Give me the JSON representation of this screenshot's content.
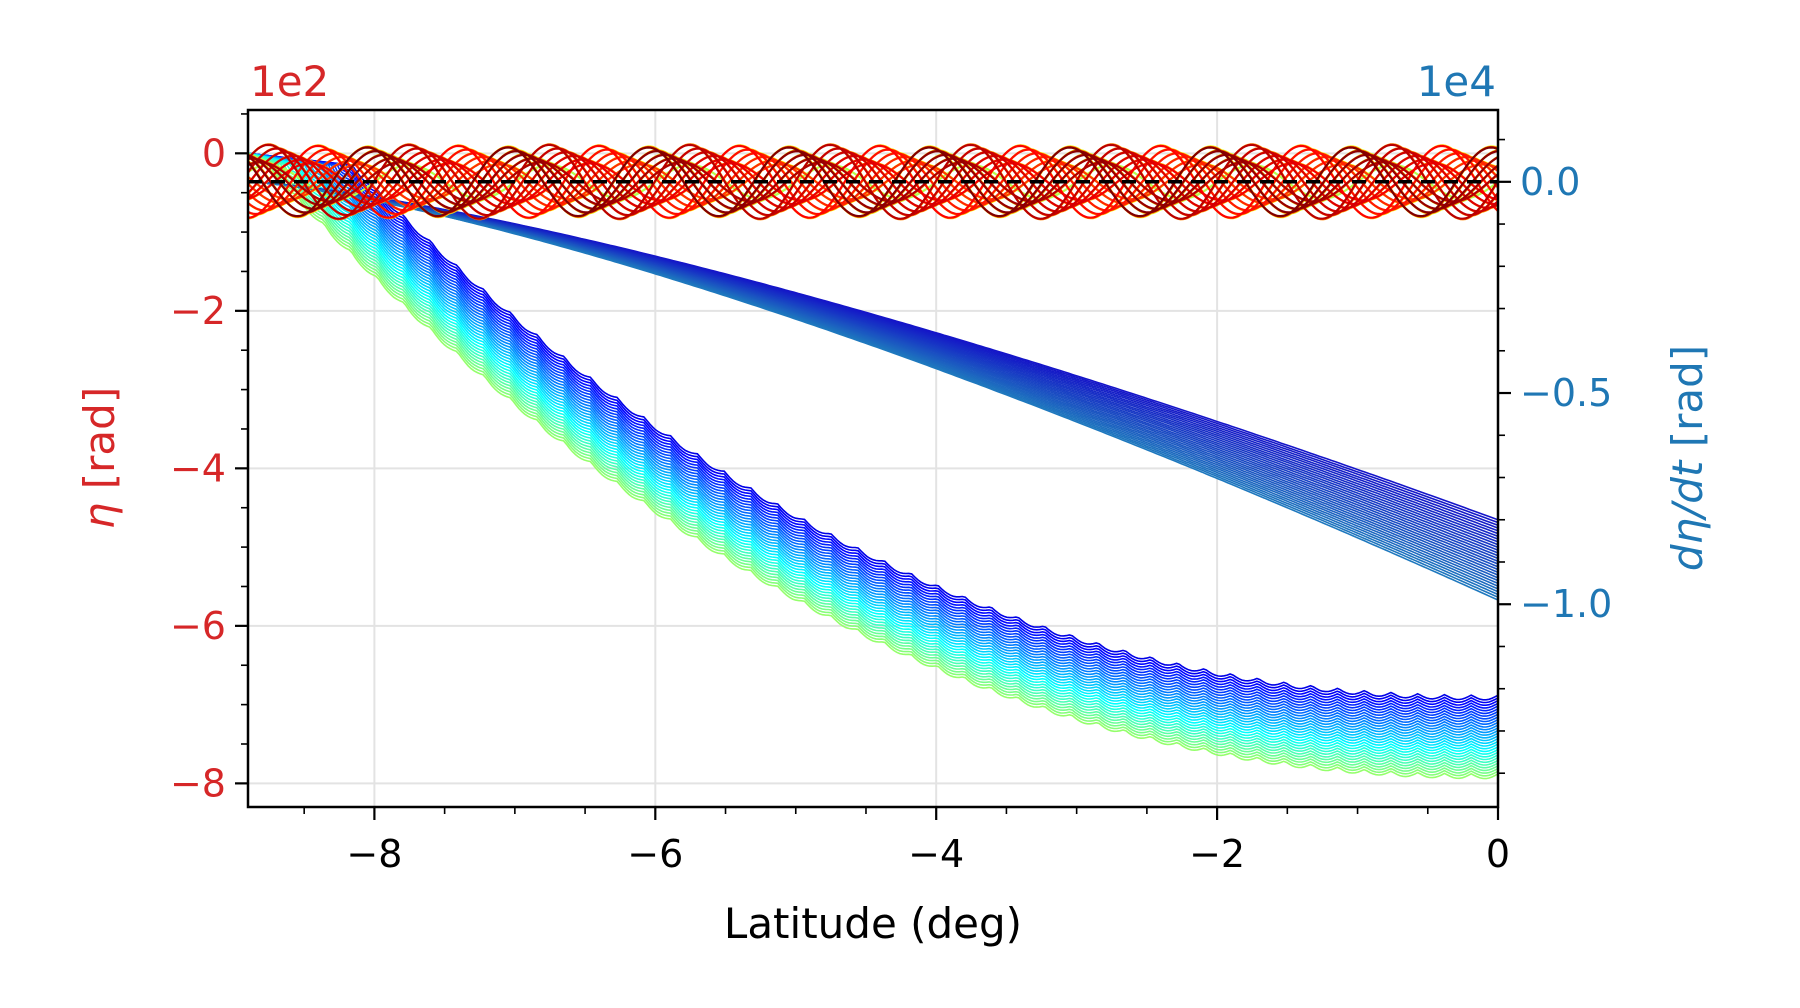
{
  "chart_data": {
    "type": "line",
    "title": "",
    "xlabel": "Latitude (deg)",
    "xlim": [
      -8.9,
      0
    ],
    "x_ticks": [
      -8,
      -6,
      -4,
      -2,
      0
    ],
    "x_tick_labels": [
      "−8",
      "−6",
      "−4",
      "−2",
      "0"
    ],
    "grid": true,
    "left_axis": {
      "label_symbol": "η",
      "label_unit": " [rad]",
      "offset_text": "1e2",
      "color": "#d62728",
      "ylim": [
        -8.3,
        0.55
      ],
      "ticks": [
        0,
        -2,
        -4,
        -6,
        -8
      ],
      "tick_labels": [
        "0",
        "−2",
        "−4",
        "−6",
        "−8"
      ]
    },
    "right_axis": {
      "label_symbol": "dη/dt",
      "label_unit": " [rad]",
      "offset_text": "1e4",
      "color": "#1f77b4",
      "ylim": [
        -1.48,
        0.17
      ],
      "ticks": [
        0.0,
        -0.5,
        -1.0
      ],
      "tick_labels": [
        "0.0",
        "−0.5",
        "−1.0"
      ]
    },
    "reference_line": {
      "axis": "right",
      "y": 0.0,
      "style": "dashed",
      "color": "#000000"
    },
    "series_groups": [
      {
        "axis": "left",
        "description_colormap": "jet (blue→cyan→green)",
        "count": 30,
        "x_start": -8.9,
        "y_start": 0,
        "y_final_min": -7.88,
        "y_final_max": -6.88,
        "oscillation_amplitude": 0.06
      },
      {
        "axis": "right",
        "description_colormap": "dark blue→steel blue",
        "count": 30,
        "x_start": -8.9,
        "y_start": 0,
        "y_final_min": -0.99,
        "y_final_max": -0.8
      },
      {
        "axis": "right",
        "description_colormap": "jet (green→yellow→orange→dark red)",
        "count": 40,
        "y_center": 0.0,
        "oscillation_amplitude_min": 0.04,
        "oscillation_amplitude_max": 0.09,
        "period_deg": 1.0
      }
    ]
  }
}
